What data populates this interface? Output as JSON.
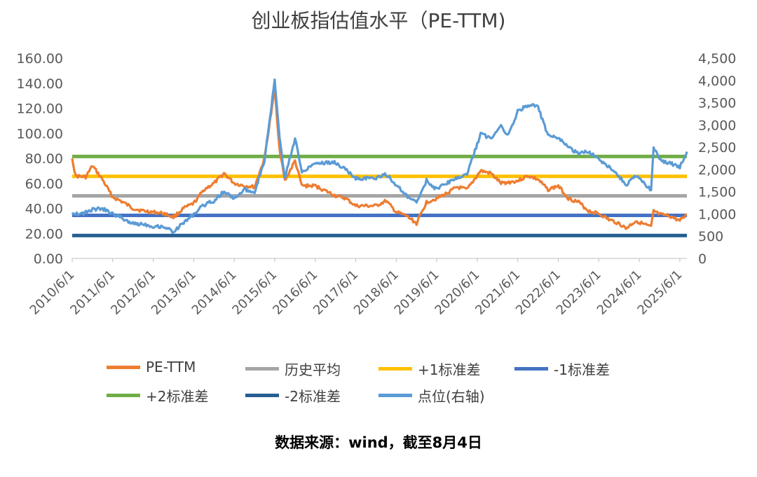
{
  "chart_data": {
    "type": "line",
    "title": "创业板指估值水平（PE-TTM)",
    "left_axis": {
      "ylim": [
        0,
        160
      ],
      "ticks": [
        "0.00",
        "20.00",
        "40.00",
        "60.00",
        "80.00",
        "100.00",
        "120.00",
        "140.00",
        "160.00"
      ]
    },
    "right_axis": {
      "ylim": [
        0,
        4500
      ],
      "ticks": [
        "0",
        "500",
        "1,000",
        "1,500",
        "2,000",
        "2,500",
        "3,000",
        "3,500",
        "4,000",
        "4,500"
      ]
    },
    "x_ticks": [
      "2010/6/1",
      "2011/6/1",
      "2012/6/1",
      "2013/6/1",
      "2014/6/1",
      "2015/6/1",
      "2016/6/1",
      "2017/6/1",
      "2018/6/1",
      "2019/6/1",
      "2020/6/1",
      "2021/6/1",
      "2022/6/1",
      "2023/6/1",
      "2024/6/1",
      "2025/6/1"
    ],
    "x_range": [
      "2010/6/1",
      "2025/8/4"
    ],
    "grid": false,
    "legend_position": "bottom",
    "series": [
      {
        "name": "PE-TTM",
        "axis": "left",
        "color": "#ED7D31",
        "points": [
          [
            "2010/6/1",
            80
          ],
          [
            "2010/7/1",
            66
          ],
          [
            "2010/10/1",
            65
          ],
          [
            "2010/12/1",
            74
          ],
          [
            "2011/3/1",
            63
          ],
          [
            "2011/6/1",
            49
          ],
          [
            "2011/9/1",
            45
          ],
          [
            "2011/12/1",
            40
          ],
          [
            "2012/3/1",
            38
          ],
          [
            "2012/6/1",
            37
          ],
          [
            "2012/9/1",
            36
          ],
          [
            "2012/12/1",
            33
          ],
          [
            "2013/3/1",
            40
          ],
          [
            "2013/6/1",
            44
          ],
          [
            "2013/9/1",
            55
          ],
          [
            "2013/12/1",
            60
          ],
          [
            "2014/3/1",
            68
          ],
          [
            "2014/6/1",
            60
          ],
          [
            "2014/9/1",
            58
          ],
          [
            "2014/12/1",
            57
          ],
          [
            "2015/3/1",
            80
          ],
          [
            "2015/6/1",
            135
          ],
          [
            "2015/7/15",
            87
          ],
          [
            "2015/9/1",
            62
          ],
          [
            "2015/12/1",
            78
          ],
          [
            "2016/2/1",
            58
          ],
          [
            "2016/6/1",
            58
          ],
          [
            "2016/12/1",
            50
          ],
          [
            "2017/3/1",
            48
          ],
          [
            "2017/6/1",
            42
          ],
          [
            "2017/12/1",
            42
          ],
          [
            "2018/3/1",
            46
          ],
          [
            "2018/6/1",
            37
          ],
          [
            "2018/9/1",
            34
          ],
          [
            "2018/12/1",
            28
          ],
          [
            "2019/3/1",
            45
          ],
          [
            "2019/6/1",
            48
          ],
          [
            "2019/9/1",
            52
          ],
          [
            "2019/12/1",
            57
          ],
          [
            "2020/3/1",
            55
          ],
          [
            "2020/7/1",
            70
          ],
          [
            "2020/10/1",
            68
          ],
          [
            "2021/1/1",
            60
          ],
          [
            "2021/6/1",
            62
          ],
          [
            "2021/9/1",
            66
          ],
          [
            "2021/12/1",
            63
          ],
          [
            "2022/3/1",
            55
          ],
          [
            "2022/6/1",
            58
          ],
          [
            "2022/9/1",
            48
          ],
          [
            "2022/12/1",
            45
          ],
          [
            "2023/3/1",
            38
          ],
          [
            "2023/6/1",
            36
          ],
          [
            "2023/9/1",
            31
          ],
          [
            "2023/12/1",
            28
          ],
          [
            "2024/2/1",
            24
          ],
          [
            "2024/5/1",
            30
          ],
          [
            "2024/9/15",
            25
          ],
          [
            "2024/10/8",
            38
          ],
          [
            "2024/12/1",
            35
          ],
          [
            "2025/3/1",
            34
          ],
          [
            "2025/6/1",
            30
          ],
          [
            "2025/8/4",
            35
          ]
        ]
      },
      {
        "name": "历史平均",
        "axis": "left",
        "color": "#A5A5A5",
        "constant": 50
      },
      {
        "name": "+1标准差",
        "axis": "left",
        "color": "#FFC000",
        "constant": 65.6
      },
      {
        "name": "-1标准差",
        "axis": "left",
        "color": "#4472C4",
        "constant": 34.4
      },
      {
        "name": "+2标准差",
        "axis": "left",
        "color": "#70AD47",
        "constant": 81.5
      },
      {
        "name": "-2标准差",
        "axis": "left",
        "color": "#255E91",
        "constant": 18.3
      },
      {
        "name": "点位(右轴)",
        "axis": "right",
        "color": "#5B9BD5",
        "points": [
          [
            "2010/6/1",
            1030
          ],
          [
            "2010/9/1",
            1000
          ],
          [
            "2010/12/1",
            1100
          ],
          [
            "2011/3/1",
            1120
          ],
          [
            "2011/6/1",
            1000
          ],
          [
            "2011/9/1",
            900
          ],
          [
            "2011/12/1",
            780
          ],
          [
            "2012/3/1",
            780
          ],
          [
            "2012/6/1",
            720
          ],
          [
            "2012/9/1",
            720
          ],
          [
            "2012/12/1",
            600
          ],
          [
            "2013/3/1",
            800
          ],
          [
            "2013/6/1",
            1000
          ],
          [
            "2013/9/1",
            1200
          ],
          [
            "2013/12/1",
            1300
          ],
          [
            "2014/3/1",
            1500
          ],
          [
            "2014/6/1",
            1350
          ],
          [
            "2014/9/1",
            1550
          ],
          [
            "2014/12/1",
            1500
          ],
          [
            "2015/3/1",
            2200
          ],
          [
            "2015/6/1",
            4000
          ],
          [
            "2015/7/15",
            2700
          ],
          [
            "2015/9/1",
            1800
          ],
          [
            "2015/12/1",
            2700
          ],
          [
            "2016/2/1",
            1950
          ],
          [
            "2016/6/1",
            2150
          ],
          [
            "2016/12/1",
            2150
          ],
          [
            "2017/3/1",
            2000
          ],
          [
            "2017/6/1",
            1800
          ],
          [
            "2017/12/1",
            1800
          ],
          [
            "2018/3/1",
            1900
          ],
          [
            "2018/6/1",
            1650
          ],
          [
            "2018/9/1",
            1400
          ],
          [
            "2018/12/1",
            1250
          ],
          [
            "2019/3/1",
            1750
          ],
          [
            "2019/6/1",
            1550
          ],
          [
            "2019/9/1",
            1700
          ],
          [
            "2019/12/1",
            1800
          ],
          [
            "2020/3/1",
            1900
          ],
          [
            "2020/7/1",
            2800
          ],
          [
            "2020/10/1",
            2700
          ],
          [
            "2021/1/1",
            3000
          ],
          [
            "2021/3/1",
            2750
          ],
          [
            "2021/6/1",
            3300
          ],
          [
            "2021/9/1",
            3450
          ],
          [
            "2021/12/1",
            3400
          ],
          [
            "2022/3/1",
            2750
          ],
          [
            "2022/6/1",
            2700
          ],
          [
            "2022/9/1",
            2500
          ],
          [
            "2022/12/1",
            2350
          ],
          [
            "2023/3/1",
            2400
          ],
          [
            "2023/6/1",
            2250
          ],
          [
            "2023/9/1",
            2050
          ],
          [
            "2023/12/1",
            1850
          ],
          [
            "2024/2/1",
            1650
          ],
          [
            "2024/5/1",
            1850
          ],
          [
            "2024/9/15",
            1550
          ],
          [
            "2024/10/8",
            2500
          ],
          [
            "2024/12/1",
            2200
          ],
          [
            "2025/3/1",
            2150
          ],
          [
            "2025/6/1",
            2050
          ],
          [
            "2025/8/4",
            2400
          ]
        ]
      }
    ]
  },
  "source_note": "数据来源：wind，截至8月4日"
}
